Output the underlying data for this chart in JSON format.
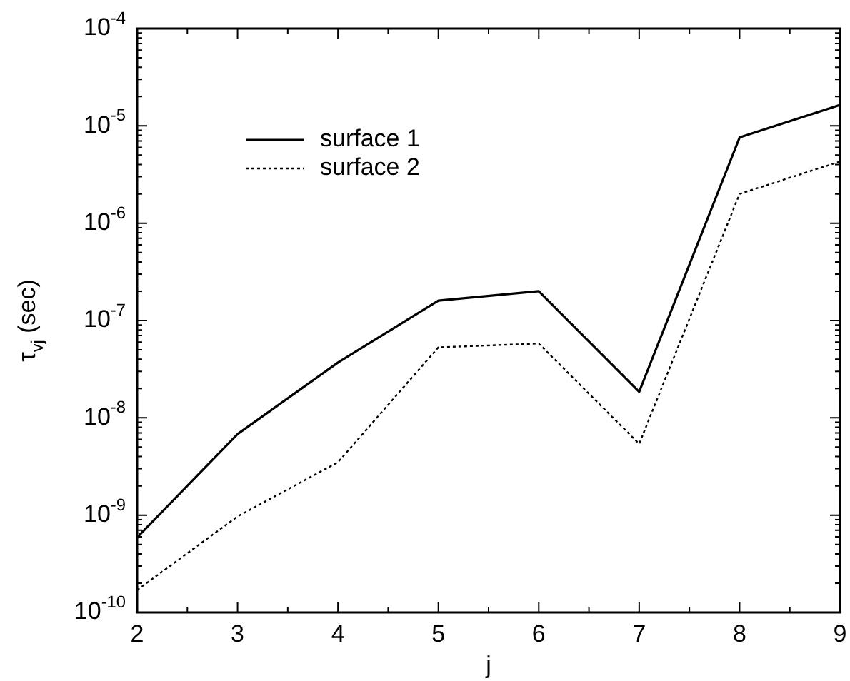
{
  "chart_data": {
    "type": "line",
    "xlabel": "j",
    "ylabel": "τ$_{vj}$ (sec)",
    "log": "y",
    "legend": "top left",
    "grid": false,
    "marker": "none",
    "x": [
      2,
      3,
      4,
      5,
      6,
      7,
      8,
      9
    ],
    "xlim": [
      2,
      9
    ],
    "xticks": [
      2,
      {
        "value": 2.5,
        "label": null
      },
      3,
      {
        "value": 3.5,
        "label": null
      },
      4,
      {
        "value": 4.5,
        "label": null
      },
      5,
      {
        "value": 5.5,
        "label": null
      },
      6,
      {
        "value": 6.5,
        "label": null
      },
      7,
      {
        "value": 7.5,
        "label": null
      },
      8,
      {
        "value": 8.5,
        "label": null
      },
      9
    ],
    "ylim": [
      1e-10,
      0.0001
    ],
    "yticks": [
      {
        "value": 1e-10,
        "label": "10$^{-10}$"
      },
      {
        "value": 1e-09,
        "label": "10$^{-9}$"
      },
      {
        "value": 1e-08,
        "label": "10$^{-8}$"
      },
      {
        "value": 1e-07,
        "label": "10$^{-7}$"
      },
      {
        "value": 1e-06,
        "label": "10$^{-6}$"
      },
      {
        "value": 1e-05,
        "label": "10$^{-5}$"
      },
      {
        "value": 0.0001,
        "label": "10$^{-4}$"
      }
    ],
    "series": [
      {
        "name": "surface 1",
        "color": "#000000",
        "line_style": "solid",
        "values": [
          5.9e-10,
          6.8e-09,
          3.7e-08,
          1.6e-07,
          2e-07,
          1.85e-08,
          7.6e-06,
          1.64e-05
        ]
      },
      {
        "name": "surface 2",
        "color": "#000000",
        "line_style": "dotted",
        "values": [
          1.7e-10,
          9.7e-10,
          3.5e-09,
          5.3e-08,
          5.8e-08,
          5.4e-09,
          2e-06,
          4.3e-06
        ]
      }
    ]
  }
}
